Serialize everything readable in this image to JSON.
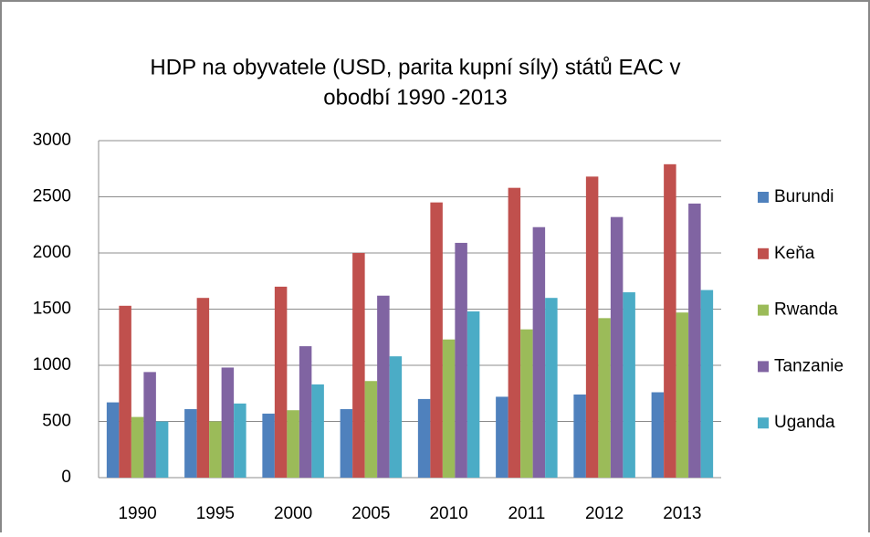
{
  "chart_data": {
    "type": "bar",
    "title": [
      "HDP na obyvatele (USD, parita kupní síly) států EAC v",
      "obodbí 1990 -2013"
    ],
    "categories": [
      "1990",
      "1995",
      "2000",
      "2005",
      "2010",
      "2011",
      "2012",
      "2013"
    ],
    "series": [
      {
        "name": "Burundi",
        "color": "#4f81bd",
        "values": [
          670,
          610,
          570,
          610,
          700,
          720,
          740,
          760
        ]
      },
      {
        "name": "Keňa",
        "color": "#c0504d",
        "values": [
          1530,
          1600,
          1700,
          2000,
          2450,
          2580,
          2680,
          2790
        ]
      },
      {
        "name": "Rwanda",
        "color": "#9bbb59",
        "values": [
          540,
          500,
          600,
          860,
          1230,
          1320,
          1420,
          1470
        ]
      },
      {
        "name": "Tanzanie",
        "color": "#8064a2",
        "values": [
          940,
          980,
          1170,
          1620,
          2090,
          2230,
          2320,
          2440
        ]
      },
      {
        "name": "Uganda",
        "color": "#4bacc6",
        "values": [
          500,
          660,
          830,
          1080,
          1480,
          1600,
          1650,
          1670
        ]
      }
    ],
    "ylim": [
      0,
      3000
    ],
    "yticks": [
      0,
      500,
      1000,
      1500,
      2000,
      2500,
      3000
    ],
    "grid": true,
    "legend": "right"
  }
}
